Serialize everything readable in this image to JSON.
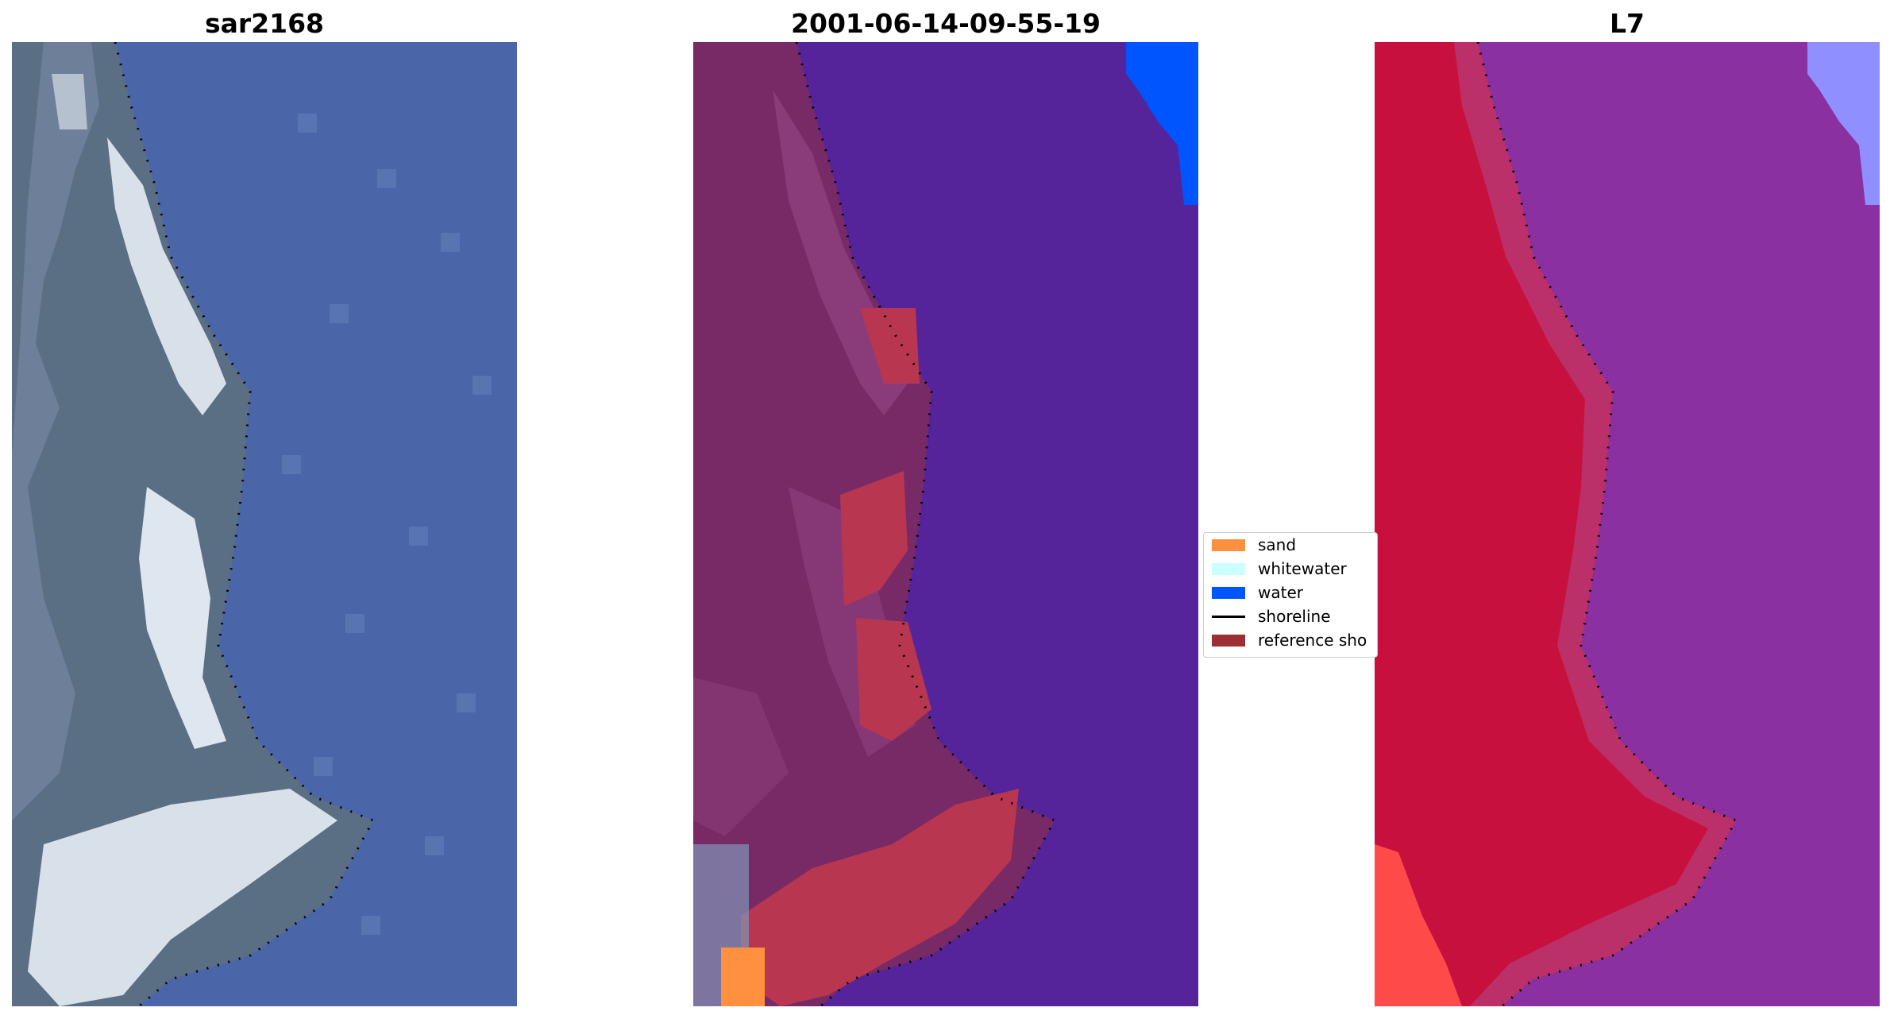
{
  "figure": {
    "panels": [
      {
        "title": "sar2168",
        "kind": "rgb"
      },
      {
        "title": "2001-06-14-09-55-19",
        "kind": "classified"
      },
      {
        "title": "L7",
        "kind": "false-color"
      }
    ],
    "legend": {
      "items": [
        {
          "label": "sand",
          "color": "#ff9040",
          "type": "patch"
        },
        {
          "label": "whitewater",
          "color": "#ccffff",
          "type": "patch"
        },
        {
          "label": "water",
          "color": "#0055ff",
          "type": "patch"
        },
        {
          "label": "shoreline",
          "color": "#000000",
          "type": "line"
        },
        {
          "label": "reference sho",
          "color": "#9c2e36",
          "type": "patch"
        }
      ]
    },
    "colors": {
      "rgb_land": "#5a6e84",
      "rgb_sea": "#4a66a8",
      "rgb_bright": "#e6ecf4",
      "class_land": "#772a66",
      "class_sea": "#55239a",
      "class_sand_mask": "#b83650",
      "class_water": "#0055ff",
      "fc_land": "#c8103e",
      "fc_sea": "#8a30a0",
      "fc_lilac": "#8f8fff",
      "shoreline": "#000000"
    }
  }
}
